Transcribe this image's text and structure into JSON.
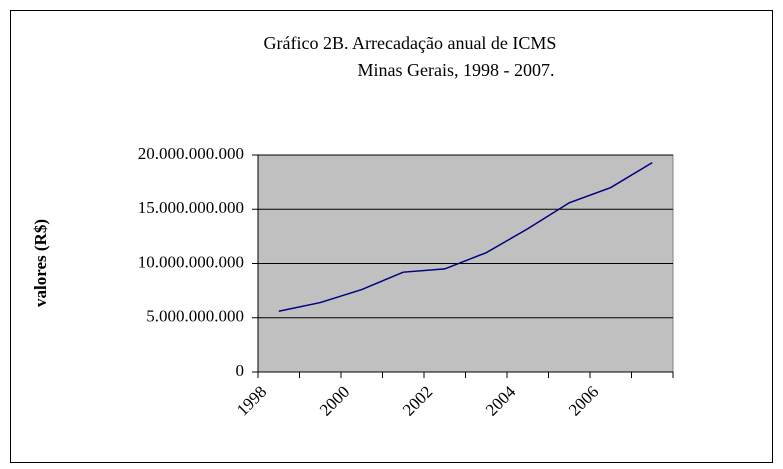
{
  "chart_data": {
    "type": "line",
    "title": "Gráfico 2B. Arrecadação anual de ICMS",
    "subtitle": "Minas Gerais, 1998 - 2007.",
    "y_label": "valores  (R$)",
    "categories": [
      "1998",
      null,
      "2000",
      null,
      "2002",
      null,
      "2004",
      null,
      "2006",
      null
    ],
    "series": [
      {
        "name": "ICMS",
        "color": "#000080",
        "values": [
          5600000000,
          6400000000,
          7600000000,
          9200000000,
          9500000000,
          11000000000,
          13200000000,
          15600000000,
          17000000000,
          19300000000
        ]
      }
    ],
    "ylim": [
      0,
      20000000000
    ],
    "yticks": [
      0,
      {
        "value": 5000000000,
        "label": "5.000.000.000"
      },
      {
        "value": 10000000000,
        "label": "10.000.000.000"
      },
      {
        "value": 15000000000,
        "label": "15.000.000.000"
      },
      {
        "value": 20000000000,
        "label": "20.000.000.000"
      }
    ],
    "grid": true
  }
}
